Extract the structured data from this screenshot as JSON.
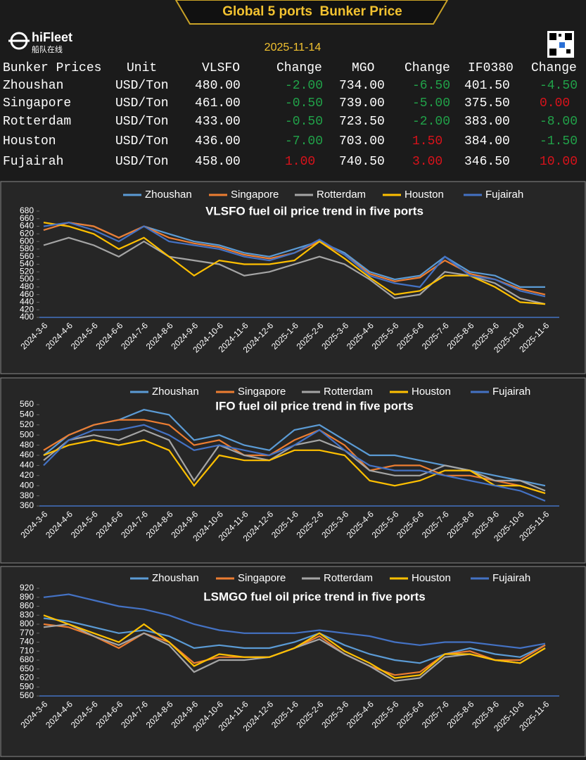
{
  "header": {
    "title": "Global 5 ports  Bunker Price",
    "logo": "hiFleet",
    "logo_sub": "船队在线",
    "date": "2025-11-14"
  },
  "table": {
    "columns": [
      "Bunker Prices",
      "Unit",
      "VLSFO",
      "Change",
      "MGO",
      "Change",
      "IF0380",
      "Change"
    ],
    "rows": [
      [
        "Zhoushan",
        "USD/Ton",
        "480.00",
        "-2.00",
        "734.00",
        "-6.50",
        "401.50",
        "-4.50"
      ],
      [
        "Singapore",
        "USD/Ton",
        "461.00",
        "-0.50",
        "739.00",
        "-5.00",
        "375.50",
        "0.00"
      ],
      [
        "Rotterdam",
        "USD/Ton",
        "433.00",
        "-0.50",
        "723.50",
        "-2.00",
        "383.00",
        "-8.00"
      ],
      [
        "Houston",
        "USD/Ton",
        "436.00",
        "-7.00",
        "703.00",
        "1.50",
        "384.00",
        "-1.50"
      ],
      [
        "Fujairah",
        "USD/Ton",
        "458.00",
        "1.00",
        "740.50",
        "3.00",
        "346.50",
        "10.00"
      ]
    ],
    "down_color": "#21a249",
    "up_color": "#d9121b"
  },
  "chart_data": [
    {
      "type": "line",
      "title": "VLSFO fuel oil price trend in five ports",
      "categories": [
        "2024-3-6",
        "2024-4-6",
        "2024-5-6",
        "2024-6-6",
        "2024-7-6",
        "2024-8-6",
        "2024-9-6",
        "2024-10-6",
        "2024-11-6",
        "2024-12-6",
        "2025-1-6",
        "2025-2-6",
        "2025-3-6",
        "2025-4-6",
        "2025-5-6",
        "2025-6-6",
        "2025-7-6",
        "2025-8-6",
        "2025-9-6",
        "2025-10-6",
        "2025-11-6"
      ],
      "ylim": [
        400,
        680
      ],
      "yticks": [
        400,
        420,
        440,
        460,
        480,
        500,
        520,
        540,
        560,
        580,
        600,
        620,
        640,
        660,
        680
      ],
      "series": [
        {
          "name": "Zhoushan",
          "color": "#5b9bd5",
          "values": [
            630,
            650,
            640,
            610,
            640,
            620,
            600,
            590,
            570,
            560,
            580,
            600,
            570,
            520,
            500,
            510,
            560,
            520,
            510,
            480,
            480
          ]
        },
        {
          "name": "Singapore",
          "color": "#ed7d31",
          "values": [
            630,
            650,
            640,
            610,
            640,
            610,
            595,
            585,
            565,
            555,
            570,
            600,
            565,
            515,
            495,
            505,
            550,
            515,
            500,
            475,
            460
          ]
        },
        {
          "name": "Rotterdam",
          "color": "#a5a5a5",
          "values": [
            590,
            610,
            590,
            560,
            600,
            560,
            550,
            540,
            510,
            520,
            540,
            560,
            540,
            500,
            450,
            460,
            520,
            510,
            490,
            450,
            435
          ]
        },
        {
          "name": "Houston",
          "color": "#ffc000",
          "values": [
            650,
            640,
            620,
            580,
            610,
            560,
            510,
            550,
            540,
            540,
            550,
            600,
            555,
            505,
            460,
            470,
            510,
            510,
            480,
            440,
            435
          ]
        },
        {
          "name": "Fujairah",
          "color": "#4472c4",
          "values": [
            640,
            650,
            630,
            600,
            640,
            600,
            590,
            580,
            560,
            550,
            570,
            605,
            565,
            510,
            490,
            480,
            560,
            510,
            500,
            470,
            455
          ]
        }
      ]
    },
    {
      "type": "line",
      "title": "IFO fuel oil price trend in five ports",
      "categories": [
        "2024-3-6",
        "2024-4-6",
        "2024-5-6",
        "2024-6-6",
        "2024-7-6",
        "2024-8-6",
        "2024-9-6",
        "2024-10-6",
        "2024-11-6",
        "2024-12-6",
        "2025-1-6",
        "2025-2-6",
        "2025-3-6",
        "2025-4-6",
        "2025-5-6",
        "2025-6-6",
        "2025-7-6",
        "2025-8-6",
        "2025-9-6",
        "2025-10-6",
        "2025-11-6"
      ],
      "ylim": [
        360,
        560
      ],
      "yticks": [
        360,
        380,
        400,
        420,
        440,
        460,
        480,
        500,
        520,
        540,
        560
      ],
      "series": [
        {
          "name": "Zhoushan",
          "color": "#5b9bd5",
          "values": [
            460,
            500,
            520,
            530,
            550,
            540,
            490,
            500,
            480,
            470,
            510,
            520,
            490,
            460,
            460,
            450,
            440,
            430,
            420,
            410,
            400
          ]
        },
        {
          "name": "Singapore",
          "color": "#ed7d31",
          "values": [
            470,
            500,
            520,
            530,
            530,
            520,
            480,
            490,
            460,
            460,
            490,
            510,
            480,
            430,
            440,
            440,
            420,
            420,
            410,
            400,
            385
          ]
        },
        {
          "name": "Rotterdam",
          "color": "#a5a5a5",
          "values": [
            450,
            490,
            500,
            490,
            510,
            490,
            410,
            480,
            460,
            450,
            480,
            490,
            470,
            430,
            420,
            420,
            440,
            430,
            410,
            410,
            390
          ]
        },
        {
          "name": "Houston",
          "color": "#ffc000",
          "values": [
            460,
            480,
            490,
            480,
            490,
            470,
            400,
            460,
            450,
            450,
            470,
            470,
            460,
            410,
            400,
            410,
            430,
            430,
            400,
            400,
            385
          ]
        },
        {
          "name": "Fujairah",
          "color": "#4472c4",
          "values": [
            440,
            490,
            510,
            510,
            520,
            500,
            470,
            480,
            470,
            460,
            480,
            510,
            470,
            440,
            430,
            430,
            420,
            410,
            400,
            390,
            370
          ]
        }
      ]
    },
    {
      "type": "line",
      "title": "LSMGO fuel oil price trend in five ports",
      "categories": [
        "2024-3-6",
        "2024-4-6",
        "2024-5-6",
        "2024-6-6",
        "2024-7-6",
        "2024-8-6",
        "2024-9-6",
        "2024-10-6",
        "2024-11-6",
        "2024-12-6",
        "2025-1-6",
        "2025-2-6",
        "2025-3-6",
        "2025-4-6",
        "2025-5-6",
        "2025-6-6",
        "2025-7-6",
        "2025-8-6",
        "2025-9-6",
        "2025-10-6",
        "2025-11-6"
      ],
      "ylim": [
        560,
        920
      ],
      "yticks": [
        560,
        590,
        620,
        650,
        680,
        710,
        740,
        770,
        800,
        830,
        860,
        890,
        920
      ],
      "series": [
        {
          "name": "Zhoushan",
          "color": "#5b9bd5",
          "values": [
            820,
            810,
            790,
            770,
            780,
            760,
            720,
            730,
            720,
            720,
            740,
            770,
            730,
            700,
            680,
            670,
            700,
            720,
            700,
            690,
            730
          ]
        },
        {
          "name": "Singapore",
          "color": "#ed7d31",
          "values": [
            800,
            790,
            760,
            720,
            770,
            740,
            670,
            690,
            690,
            690,
            720,
            760,
            700,
            660,
            630,
            640,
            700,
            710,
            680,
            680,
            730
          ]
        },
        {
          "name": "Rotterdam",
          "color": "#a5a5a5",
          "values": [
            790,
            800,
            760,
            730,
            770,
            730,
            640,
            680,
            680,
            690,
            720,
            750,
            700,
            660,
            610,
            620,
            690,
            700,
            680,
            670,
            720
          ]
        },
        {
          "name": "Houston",
          "color": "#ffc000",
          "values": [
            830,
            800,
            770,
            740,
            800,
            740,
            660,
            700,
            690,
            690,
            720,
            770,
            710,
            670,
            620,
            630,
            700,
            700,
            680,
            670,
            720
          ]
        },
        {
          "name": "Fujairah",
          "color": "#4472c4",
          "values": [
            890,
            900,
            880,
            860,
            850,
            830,
            800,
            780,
            770,
            770,
            770,
            780,
            770,
            760,
            740,
            730,
            740,
            740,
            730,
            720,
            735
          ]
        }
      ]
    }
  ]
}
